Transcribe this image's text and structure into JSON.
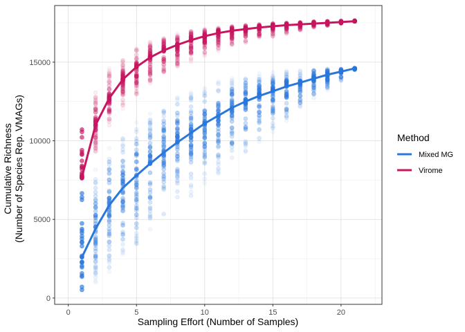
{
  "chart_data": {
    "type": "scatter",
    "title": "",
    "xlabel": "Sampling Effort (Number of Samples)",
    "ylabel_lines": [
      "Cumulative Richness",
      "(Number of Species Rep. VMAGs)"
    ],
    "xlim": [
      -1,
      23
    ],
    "ylim": [
      -400,
      18600
    ],
    "x_ticks": [
      0,
      5,
      10,
      15,
      20
    ],
    "y_ticks": [
      0,
      5000,
      10000,
      15000
    ],
    "grid": true,
    "legend": {
      "title": "Method",
      "position": "right"
    },
    "series": [
      {
        "name": "Mixed MG",
        "color": "#2A77DC",
        "curve_x": [
          1,
          2,
          3,
          4,
          5,
          6,
          7,
          8,
          9,
          10,
          11,
          12,
          13,
          14,
          15,
          16,
          17,
          18,
          19,
          20,
          21
        ],
        "curve_y": [
          2600,
          4400,
          5900,
          7000,
          7800,
          8550,
          9250,
          9900,
          10500,
          11100,
          11600,
          12100,
          12500,
          12850,
          13150,
          13450,
          13700,
          13950,
          14200,
          14400,
          14600
        ],
        "spread_low": [
          400,
          1000,
          1600,
          2600,
          3400,
          4200,
          5000,
          5700,
          6400,
          7100,
          7800,
          8500,
          9200,
          9800,
          10500,
          11200,
          11900,
          12600,
          13200,
          13800,
          14500
        ],
        "spread_high": [
          6700,
          8300,
          9600,
          10400,
          11200,
          11800,
          12300,
          12800,
          13200,
          13500,
          13800,
          14000,
          14200,
          14300,
          14400,
          14450,
          14500,
          14550,
          14580,
          14600,
          14620
        ]
      },
      {
        "name": "Virome",
        "color": "#C8155F",
        "curve_x": [
          1,
          2,
          3,
          4,
          5,
          6,
          7,
          8,
          9,
          10,
          11,
          12,
          13,
          14,
          15,
          16,
          17,
          18,
          19,
          20,
          21
        ],
        "curve_y": [
          7700,
          11000,
          12700,
          13900,
          14700,
          15300,
          15750,
          16100,
          16400,
          16650,
          16850,
          17000,
          17100,
          17200,
          17280,
          17350,
          17400,
          17450,
          17500,
          17550,
          17600
        ],
        "spread_low": [
          7600,
          9200,
          10800,
          12000,
          12800,
          13500,
          14100,
          14600,
          15000,
          15400,
          15700,
          16000,
          16200,
          16400,
          16600,
          16800,
          17000,
          17200,
          17300,
          17450,
          17600
        ],
        "spread_high": [
          10900,
          13300,
          14600,
          15300,
          15900,
          16300,
          16600,
          16800,
          17000,
          17100,
          17200,
          17300,
          17380,
          17430,
          17480,
          17520,
          17560,
          17600,
          17620,
          17640,
          17650
        ]
      }
    ]
  }
}
